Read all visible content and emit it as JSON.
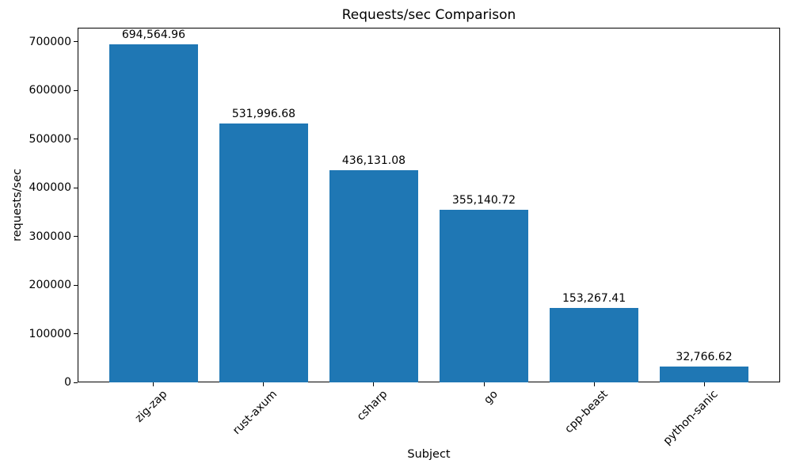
{
  "chart_data": {
    "type": "bar",
    "title": "Requests/sec Comparison",
    "xlabel": "Subject",
    "ylabel": "requests/sec",
    "categories": [
      "zig-zap",
      "rust-axum",
      "csharp",
      "go",
      "cpp-beast",
      "python-sanic"
    ],
    "values": [
      694564.96,
      531996.68,
      436131.08,
      355140.72,
      153267.41,
      32766.62
    ],
    "value_labels": [
      "694,564.96",
      "531,996.68",
      "436,131.08",
      "355,140.72",
      "153,267.41",
      "32,766.62"
    ],
    "bar_color": "#1f77b4",
    "ylim": [
      0,
      729293
    ],
    "yticks": [
      0,
      100000,
      200000,
      300000,
      400000,
      500000,
      600000,
      700000
    ],
    "ytick_labels": [
      "0",
      "100000",
      "200000",
      "300000",
      "400000",
      "500000",
      "600000",
      "700000"
    ],
    "grid": false,
    "legend": null,
    "bar_width_fraction": 0.8
  }
}
